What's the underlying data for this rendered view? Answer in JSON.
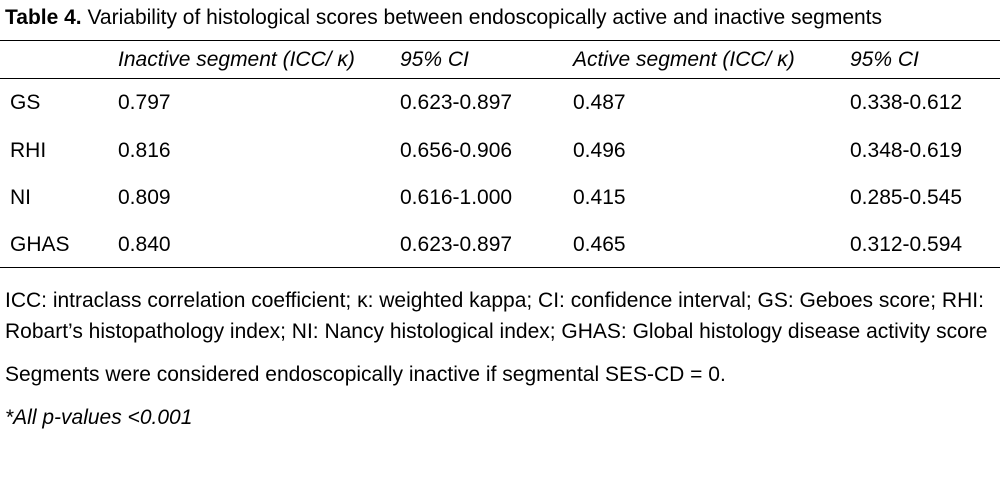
{
  "caption": {
    "label": "Table 4.",
    "text": " Variability of histological scores between endoscopically active and inactive segments"
  },
  "table": {
    "headers": [
      "",
      "Inactive segment (ICC/ κ)",
      "95% CI",
      "Active segment (ICC/ κ)",
      "95% CI"
    ],
    "rows": [
      [
        "GS",
        "0.797",
        "0.623-0.897",
        "0.487",
        "0.338-0.612"
      ],
      [
        "RHI",
        "0.816",
        "0.656-0.906",
        "0.496",
        "0.348-0.619"
      ],
      [
        "NI",
        "0.809",
        "0.616-1.000",
        "0.415",
        "0.285-0.545"
      ],
      [
        "GHAS",
        "0.840",
        "0.623-0.897",
        "0.465",
        "0.312-0.594"
      ]
    ]
  },
  "footnotes": {
    "abbreviations": "ICC: intraclass correlation coefficient; κ: weighted kappa; CI: confidence interval; GS: Geboes score; RHI: Robart’s histopathology index; NI: Nancy histological index; GHAS: Global histology disease activity score",
    "inactive_definition": "Segments were considered endoscopically inactive if segmental SES-CD = 0.",
    "p_values": "*All p-values <0.001"
  }
}
